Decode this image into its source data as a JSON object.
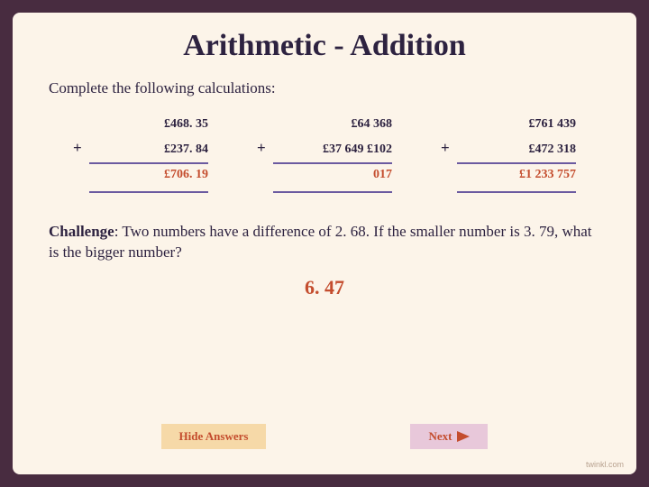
{
  "title": "Arithmetic - Addition",
  "instruction": "Complete the following calculations:",
  "problems": [
    {
      "line1": "£468. 35",
      "line2": "£237. 84",
      "result": "£706. 19"
    },
    {
      "line1": "£64 368",
      "line2": "£37 649 £102",
      "result": "017"
    },
    {
      "line1": "£761 439",
      "line2": "£472 318",
      "result": "£1 233 757"
    }
  ],
  "challenge_label": "Challenge",
  "challenge_text": ": Two numbers have a difference of 2. 68. If the smaller number is 3. 79, what is the bigger number?",
  "challenge_answer": "6. 47",
  "buttons": {
    "hide": "Hide Answers",
    "next": "Next"
  },
  "watermark": "twinkl.com",
  "colors": {
    "page_bg": "#482c40",
    "card_bg": "#fcf4e9",
    "text": "#2d2240",
    "answer": "#c44d2e",
    "rule": "#6b5aa0",
    "btn_hide_bg": "#f6d9a8",
    "btn_next_bg": "#e8c8da"
  }
}
